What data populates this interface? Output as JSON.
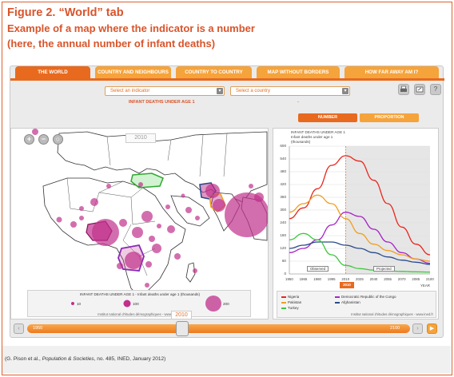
{
  "figure": {
    "title": "Figure 2. “World” tab",
    "subtitle_line1": "Example of a map where the indicator is a number",
    "subtitle_line2": "(here, the annual number of infant deaths)"
  },
  "tabs": [
    {
      "label": "THE WORLD",
      "active": true
    },
    {
      "label": "COUNTRY AND NEIGHBOURS",
      "active": false
    },
    {
      "label": "COUNTRY TO COUNTRY",
      "active": false
    },
    {
      "label": "MAP WITHOUT BORDERS",
      "active": false
    },
    {
      "label": "HOW FAR AWAY AM I?",
      "active": false
    }
  ],
  "controls": {
    "indicator_placeholder": "Select an indicator",
    "country_placeholder": "Select a country",
    "indicator_value": "INFANT DEATHS UNDER AGE 1",
    "country_value": "-",
    "number_label": "NUMBER",
    "proportion_label": "PROPORTION",
    "tool_icons": [
      "print-icon",
      "share-icon",
      "help-icon"
    ],
    "help_glyph": "?"
  },
  "map": {
    "year": "2010",
    "legend_title": "INFANT DEATHS UNDER AGE 1 - Infant deaths under age 1 (thousands)",
    "legend_values": [
      "10",
      "100",
      "200"
    ],
    "source": "Institut national d'études démographiques - www.ined.fr"
  },
  "chart_data": {
    "type": "line",
    "title_line1": "INFANT DEATHS UNDER AGE 1",
    "title_line2": "Infant deaths under age 1",
    "title_line3": "(thousands)",
    "xlabel": "YEAR",
    "x_ticks": [
      "1950",
      "1965",
      "1980",
      "1995",
      "2010",
      "2025",
      "2040",
      "2055",
      "2070",
      "2085",
      "2100"
    ],
    "y_ticks": [
      "600",
      "540",
      "480",
      "420",
      "360",
      "300",
      "240",
      "180",
      "120",
      "60",
      "0"
    ],
    "ylim": [
      0,
      600
    ],
    "xlim": [
      1950,
      2100
    ],
    "current_year": "2010",
    "observed_label": "Observed",
    "projected_label": "Projected",
    "x": [
      1950,
      1965,
      1980,
      1995,
      2010,
      2025,
      2040,
      2055,
      2070,
      2085,
      2100
    ],
    "series": [
      {
        "name": "Nigeria",
        "color": "#e8261e",
        "values": [
          260,
          310,
          400,
          510,
          555,
          530,
          440,
          330,
          220,
          140,
          90
        ]
      },
      {
        "name": "Democratic Republic of the Congo",
        "color": "#a626c8",
        "values": [
          100,
          120,
          160,
          230,
          290,
          270,
          210,
          150,
          100,
          70,
          50
        ]
      },
      {
        "name": "Pakistan",
        "color": "#f0a020",
        "values": [
          290,
          330,
          370,
          330,
          260,
          190,
          140,
          110,
          90,
          70,
          60
        ]
      },
      {
        "name": "Afghanistan",
        "color": "#2a4a8a",
        "values": [
          120,
          135,
          150,
          150,
          135,
          120,
          100,
          80,
          65,
          55,
          45
        ]
      },
      {
        "name": "Turkey",
        "color": "#3ec83e",
        "values": [
          160,
          190,
          160,
          90,
          40,
          25,
          18,
          14,
          12,
          10,
          9
        ]
      }
    ],
    "source": "Institut national d'études démographiques - www.ined.fr"
  },
  "slider": {
    "start": "1950",
    "end": "2100",
    "current": "2010",
    "current_value": 2010
  },
  "caption": {
    "prefix": "(G. Pison et al., ",
    "journal": "Population & Societies",
    "suffix": ", no. 485, INED, January 2012)"
  }
}
